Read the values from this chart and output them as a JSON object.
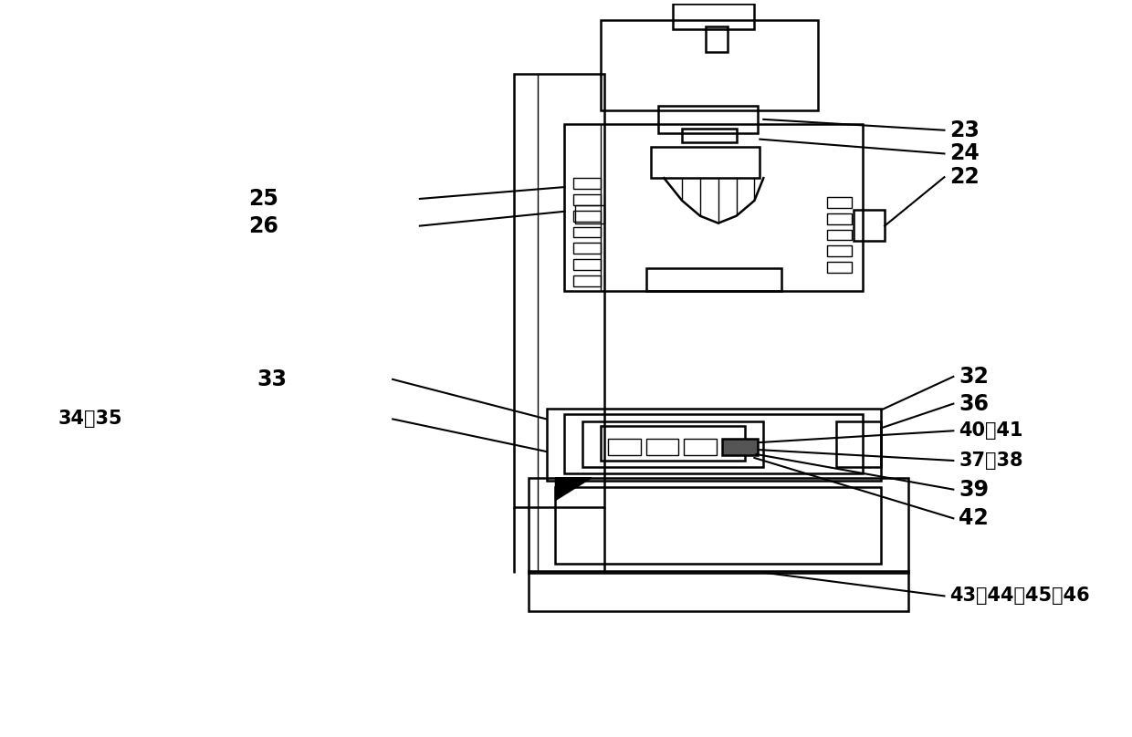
{
  "bg_color": "#ffffff",
  "lc": "#000000",
  "lw": 1.8,
  "tlw": 1.0,
  "fig_width": 12.4,
  "fig_height": 8.08
}
